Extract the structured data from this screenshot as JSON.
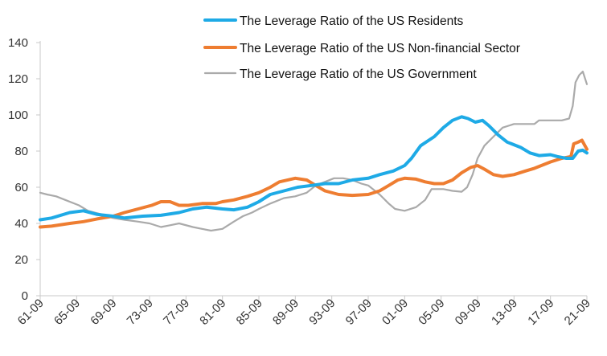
{
  "chart_data": {
    "type": "line",
    "title": "",
    "xlabel": "",
    "ylabel": "",
    "ylim": [
      0,
      140
    ],
    "yticks": [
      0,
      20,
      40,
      60,
      80,
      100,
      120,
      140
    ],
    "xlim": [
      1961.75,
      2021.75
    ],
    "xticks": [
      {
        "label": "61-09",
        "x": 1961.75
      },
      {
        "label": "65-09",
        "x": 1965.75
      },
      {
        "label": "69-09",
        "x": 1969.75
      },
      {
        "label": "73-09",
        "x": 1973.75
      },
      {
        "label": "77-09",
        "x": 1977.75
      },
      {
        "label": "81-09",
        "x": 1981.75
      },
      {
        "label": "85-09",
        "x": 1985.75
      },
      {
        "label": "89-09",
        "x": 1989.75
      },
      {
        "label": "93-09",
        "x": 1993.75
      },
      {
        "label": "97-09",
        "x": 1997.75
      },
      {
        "label": "01-09",
        "x": 2001.75
      },
      {
        "label": "05-09",
        "x": 2005.75
      },
      {
        "label": "09-09",
        "x": 2009.75
      },
      {
        "label": "13-09",
        "x": 2013.75
      },
      {
        "label": "17-09",
        "x": 2017.75
      },
      {
        "label": "21-09",
        "x": 2021.75
      }
    ],
    "grid": false,
    "legend_position": "top-right",
    "series": [
      {
        "name": "The Leverage Ratio of the US Residents",
        "color": "#1EAAE6",
        "points": [
          [
            1961.75,
            42
          ],
          [
            1963.0,
            43
          ],
          [
            1965.0,
            46
          ],
          [
            1966.5,
            47
          ],
          [
            1968.0,
            45
          ],
          [
            1969.75,
            44
          ],
          [
            1971.0,
            43
          ],
          [
            1973.0,
            44
          ],
          [
            1975.0,
            44.5
          ],
          [
            1977.0,
            46
          ],
          [
            1978.5,
            48
          ],
          [
            1980.0,
            49
          ],
          [
            1981.75,
            48
          ],
          [
            1983.0,
            47.5
          ],
          [
            1984.5,
            49
          ],
          [
            1985.75,
            52
          ],
          [
            1987.0,
            56
          ],
          [
            1988.5,
            58
          ],
          [
            1990.0,
            60
          ],
          [
            1991.5,
            61
          ],
          [
            1993.0,
            62
          ],
          [
            1994.5,
            62
          ],
          [
            1996.0,
            64
          ],
          [
            1997.75,
            65
          ],
          [
            1999.0,
            67
          ],
          [
            2000.5,
            69
          ],
          [
            2001.75,
            72
          ],
          [
            2002.5,
            76
          ],
          [
            2003.5,
            83
          ],
          [
            2005.0,
            88
          ],
          [
            2006.0,
            93
          ],
          [
            2007.0,
            97
          ],
          [
            2008.0,
            99
          ],
          [
            2008.7,
            98
          ],
          [
            2009.5,
            96
          ],
          [
            2010.3,
            97
          ],
          [
            2011.0,
            94
          ],
          [
            2012.0,
            89
          ],
          [
            2013.0,
            85
          ],
          [
            2014.5,
            82
          ],
          [
            2015.5,
            79
          ],
          [
            2016.5,
            77.5
          ],
          [
            2017.75,
            78
          ],
          [
            2018.5,
            77
          ],
          [
            2019.5,
            76
          ],
          [
            2020.2,
            76
          ],
          [
            2020.8,
            80
          ],
          [
            2021.3,
            80.5
          ],
          [
            2021.75,
            79
          ]
        ]
      },
      {
        "name": "The Leverage Ratio of the US Non-financial Sector",
        "color": "#EE7D31",
        "points": [
          [
            1961.75,
            38
          ],
          [
            1963.0,
            38.5
          ],
          [
            1965.0,
            40
          ],
          [
            1966.5,
            41
          ],
          [
            1968.0,
            42.5
          ],
          [
            1969.75,
            44
          ],
          [
            1971.0,
            46
          ],
          [
            1972.5,
            48
          ],
          [
            1974.0,
            50
          ],
          [
            1975.0,
            52
          ],
          [
            1976.0,
            52
          ],
          [
            1977.0,
            50
          ],
          [
            1978.0,
            50
          ],
          [
            1979.5,
            51
          ],
          [
            1981.0,
            51
          ],
          [
            1981.75,
            52
          ],
          [
            1983.0,
            53
          ],
          [
            1984.5,
            55
          ],
          [
            1985.75,
            57
          ],
          [
            1987.0,
            60
          ],
          [
            1988.0,
            63
          ],
          [
            1989.75,
            65
          ],
          [
            1991.0,
            64
          ],
          [
            1992.0,
            61
          ],
          [
            1993.0,
            58
          ],
          [
            1994.5,
            56
          ],
          [
            1996.0,
            55.5
          ],
          [
            1997.75,
            56
          ],
          [
            1999.0,
            58
          ],
          [
            2000.0,
            61
          ],
          [
            2001.0,
            64
          ],
          [
            2001.75,
            65
          ],
          [
            2003.0,
            64.5
          ],
          [
            2004.0,
            63
          ],
          [
            2005.0,
            62
          ],
          [
            2006.0,
            62
          ],
          [
            2007.0,
            64
          ],
          [
            2008.0,
            68
          ],
          [
            2009.0,
            71
          ],
          [
            2009.75,
            72
          ],
          [
            2010.5,
            70
          ],
          [
            2011.5,
            67
          ],
          [
            2012.5,
            66
          ],
          [
            2013.75,
            67
          ],
          [
            2015.0,
            69
          ],
          [
            2016.0,
            70.5
          ],
          [
            2017.0,
            72.5
          ],
          [
            2017.75,
            74
          ],
          [
            2019.0,
            76
          ],
          [
            2020.0,
            77
          ],
          [
            2020.3,
            84
          ],
          [
            2020.8,
            85
          ],
          [
            2021.2,
            86
          ],
          [
            2021.75,
            81
          ]
        ]
      },
      {
        "name": "The Leverage Ratio of the US Government",
        "color": "#AAAAAA",
        "points": [
          [
            1961.75,
            57
          ],
          [
            1962.5,
            56
          ],
          [
            1963.5,
            55
          ],
          [
            1964.5,
            53
          ],
          [
            1966.0,
            50
          ],
          [
            1967.0,
            47
          ],
          [
            1968.5,
            45
          ],
          [
            1969.75,
            43
          ],
          [
            1971.0,
            42
          ],
          [
            1972.5,
            41
          ],
          [
            1973.75,
            40
          ],
          [
            1975.0,
            38
          ],
          [
            1976.0,
            39
          ],
          [
            1977.0,
            40
          ],
          [
            1978.5,
            38
          ],
          [
            1979.5,
            37
          ],
          [
            1980.5,
            36
          ],
          [
            1981.75,
            37
          ],
          [
            1983.0,
            41
          ],
          [
            1984.0,
            44
          ],
          [
            1985.0,
            46
          ],
          [
            1985.75,
            48
          ],
          [
            1987.0,
            51
          ],
          [
            1988.5,
            54
          ],
          [
            1989.75,
            55
          ],
          [
            1991.0,
            57
          ],
          [
            1992.0,
            61
          ],
          [
            1993.0,
            63
          ],
          [
            1994.0,
            65
          ],
          [
            1995.0,
            65
          ],
          [
            1996.0,
            64
          ],
          [
            1997.0,
            62
          ],
          [
            1997.75,
            61
          ],
          [
            1999.0,
            56
          ],
          [
            2000.0,
            51
          ],
          [
            2000.7,
            48
          ],
          [
            2001.75,
            47
          ],
          [
            2003.0,
            49
          ],
          [
            2004.0,
            53
          ],
          [
            2004.7,
            59
          ],
          [
            2006.0,
            59
          ],
          [
            2007.0,
            58
          ],
          [
            2008.0,
            57.5
          ],
          [
            2008.6,
            60
          ],
          [
            2009.2,
            67
          ],
          [
            2009.75,
            76
          ],
          [
            2010.5,
            83
          ],
          [
            2011.5,
            88
          ],
          [
            2012.5,
            93
          ],
          [
            2013.75,
            95
          ],
          [
            2015.0,
            95
          ],
          [
            2016.0,
            95
          ],
          [
            2016.5,
            97
          ],
          [
            2017.75,
            97
          ],
          [
            2019.0,
            97
          ],
          [
            2019.8,
            98
          ],
          [
            2020.2,
            105
          ],
          [
            2020.5,
            118
          ],
          [
            2020.9,
            122
          ],
          [
            2021.3,
            124
          ],
          [
            2021.75,
            117
          ]
        ]
      }
    ]
  }
}
